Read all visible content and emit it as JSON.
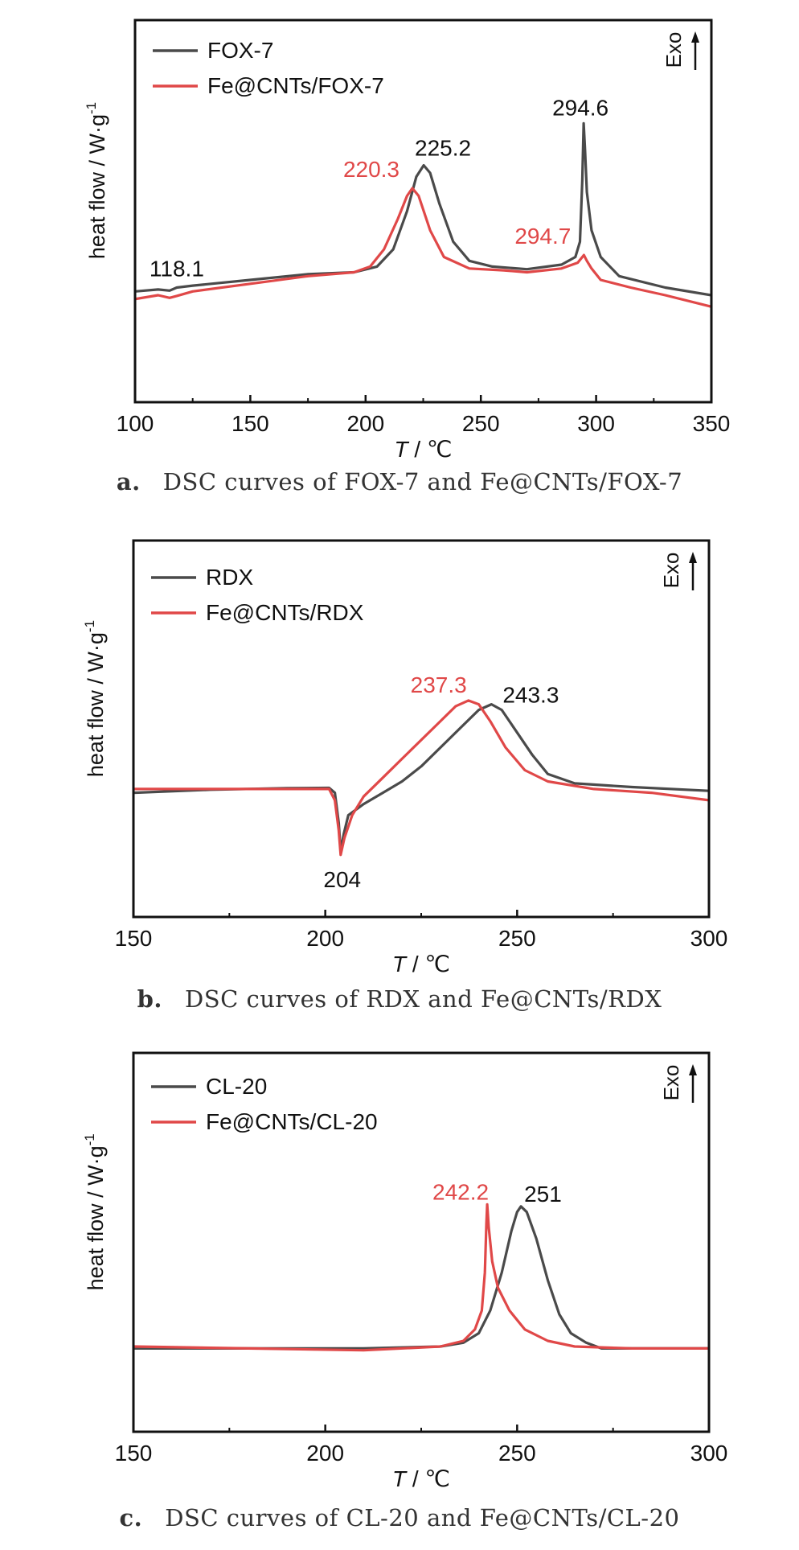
{
  "chart_data": [
    {
      "type": "line",
      "panel_letter": "a.",
      "caption": "DSC curves of FOX-7 and Fe@CNTs/FOX-7",
      "xlabel_italic": "T",
      "xlabel_rest": " / ℃",
      "ylabel": "heat flow / W·g",
      "ylabel_sup": "-1",
      "exo_label": "Exo",
      "xlim": [
        100,
        350
      ],
      "ylim": [
        0,
        100
      ],
      "xticks": [
        100,
        150,
        200,
        250,
        300,
        350
      ],
      "grid": false,
      "legend_position": "top-left",
      "series": [
        {
          "name": "FOX-7",
          "color": "#4a4a4a",
          "points": [
            [
              100,
              29
            ],
            [
              110,
              29.5
            ],
            [
              115,
              29.2
            ],
            [
              118.1,
              30
            ],
            [
              125,
              30.5
            ],
            [
              150,
              32
            ],
            [
              175,
              33.5
            ],
            [
              195,
              34
            ],
            [
              205,
              35.5
            ],
            [
              212,
              40
            ],
            [
              218,
              50
            ],
            [
              222,
              59
            ],
            [
              225.2,
              62
            ],
            [
              228,
              60
            ],
            [
              232,
              52
            ],
            [
              238,
              42
            ],
            [
              245,
              37
            ],
            [
              255,
              35.5
            ],
            [
              270,
              34.8
            ],
            [
              285,
              36
            ],
            [
              291,
              38
            ],
            [
              293,
              42
            ],
            [
              294,
              58
            ],
            [
              294.6,
              73
            ],
            [
              295.2,
              66
            ],
            [
              296,
              55
            ],
            [
              298,
              45
            ],
            [
              302,
              38
            ],
            [
              310,
              33
            ],
            [
              330,
              30
            ],
            [
              350,
              28
            ]
          ]
        },
        {
          "name": "Fe@CNTs/FOX-7",
          "color": "#e04848",
          "points": [
            [
              100,
              27
            ],
            [
              110,
              28
            ],
            [
              115,
              27.3
            ],
            [
              118.1,
              27.8
            ],
            [
              125,
              29
            ],
            [
              150,
              31
            ],
            [
              175,
              33
            ],
            [
              195,
              34
            ],
            [
              202,
              35.5
            ],
            [
              208,
              40
            ],
            [
              214,
              48
            ],
            [
              218,
              54
            ],
            [
              220.3,
              56
            ],
            [
              223,
              54
            ],
            [
              228,
              45
            ],
            [
              234,
              38
            ],
            [
              245,
              35
            ],
            [
              260,
              34.5
            ],
            [
              270,
              34
            ],
            [
              285,
              35
            ],
            [
              292,
              36.5
            ],
            [
              294.7,
              38.5
            ],
            [
              296,
              37
            ],
            [
              298,
              35
            ],
            [
              302,
              32
            ],
            [
              315,
              30
            ],
            [
              330,
              28
            ],
            [
              350,
              25
            ]
          ]
        }
      ],
      "annotations": [
        {
          "text": "118.1",
          "x": 118.1,
          "y": 30,
          "color": "#111111"
        },
        {
          "text": "220.3",
          "x": 220.3,
          "y": 56,
          "color": "#e04848"
        },
        {
          "text": "225.2",
          "x": 225.2,
          "y": 62,
          "color": "#111111"
        },
        {
          "text": "294.7",
          "x": 294.7,
          "y": 38.5,
          "color": "#e04848"
        },
        {
          "text": "294.6",
          "x": 294.6,
          "y": 73,
          "color": "#111111"
        }
      ]
    },
    {
      "type": "line",
      "panel_letter": "b.",
      "caption": "DSC curves of RDX and Fe@CNTs/RDX",
      "xlabel_italic": "T",
      "xlabel_rest": " / ℃",
      "ylabel": "heat flow / W·g",
      "ylabel_sup": "-1",
      "exo_label": "Exo",
      "xlim": [
        150,
        300
      ],
      "ylim": [
        0,
        100
      ],
      "xticks": [
        150,
        200,
        250,
        300
      ],
      "grid": false,
      "legend_position": "top-left",
      "series": [
        {
          "name": "RDX",
          "color": "#4a4a4a",
          "points": [
            [
              150,
              33
            ],
            [
              170,
              33.8
            ],
            [
              190,
              34.2
            ],
            [
              201,
              34.3
            ],
            [
              202.5,
              33
            ],
            [
              203.5,
              25
            ],
            [
              204,
              17.5
            ],
            [
              204.8,
              22
            ],
            [
              206,
              27
            ],
            [
              210,
              30
            ],
            [
              215,
              33
            ],
            [
              220,
              36
            ],
            [
              225,
              40
            ],
            [
              230,
              45
            ],
            [
              235,
              50
            ],
            [
              240,
              55
            ],
            [
              243.3,
              56.5
            ],
            [
              246,
              55
            ],
            [
              250,
              49
            ],
            [
              254,
              43
            ],
            [
              258,
              38
            ],
            [
              265,
              35.5
            ],
            [
              280,
              34.5
            ],
            [
              300,
              33.5
            ]
          ]
        },
        {
          "name": "Fe@CNTs/RDX",
          "color": "#e04848",
          "points": [
            [
              150,
              34
            ],
            [
              170,
              34
            ],
            [
              190,
              34
            ],
            [
              201,
              34
            ],
            [
              202.5,
              31
            ],
            [
              203.5,
              23
            ],
            [
              204,
              16.5
            ],
            [
              205,
              21
            ],
            [
              207,
              27
            ],
            [
              210,
              32
            ],
            [
              215,
              37
            ],
            [
              220,
              42
            ],
            [
              225,
              47
            ],
            [
              230,
              52
            ],
            [
              234,
              56
            ],
            [
              237.3,
              57.5
            ],
            [
              240,
              56.5
            ],
            [
              243,
              52
            ],
            [
              247,
              45
            ],
            [
              252,
              39
            ],
            [
              258,
              36
            ],
            [
              270,
              34
            ],
            [
              285,
              33
            ],
            [
              300,
              31
            ]
          ]
        }
      ],
      "annotations": [
        {
          "text": "237.3",
          "x": 237.3,
          "y": 57.5,
          "color": "#e04848"
        },
        {
          "text": "243.3",
          "x": 243.3,
          "y": 56.5,
          "color": "#111111"
        },
        {
          "text": "204",
          "x": 204,
          "y": 16.5,
          "color": "#111111"
        }
      ]
    },
    {
      "type": "line",
      "panel_letter": "c.",
      "caption": "DSC curves of CL-20 and Fe@CNTs/CL-20",
      "xlabel_italic": "T",
      "xlabel_rest": " / ℃",
      "ylabel": "heat flow / W·g",
      "ylabel_sup": "-1",
      "exo_label": "Exo",
      "xlim": [
        150,
        300
      ],
      "ylim": [
        0,
        100
      ],
      "xticks": [
        150,
        200,
        250,
        300
      ],
      "grid": false,
      "legend_position": "top-left",
      "series": [
        {
          "name": "CL-20",
          "color": "#4a4a4a",
          "points": [
            [
              150,
              22
            ],
            [
              180,
              22
            ],
            [
              210,
              22
            ],
            [
              230,
              22.5
            ],
            [
              236,
              23.5
            ],
            [
              240,
              26
            ],
            [
              243,
              32
            ],
            [
              246,
              42
            ],
            [
              248.5,
              53
            ],
            [
              250,
              58
            ],
            [
              251,
              59.5
            ],
            [
              252.5,
              58
            ],
            [
              255,
              51
            ],
            [
              258,
              40
            ],
            [
              261,
              31
            ],
            [
              264,
              26
            ],
            [
              268,
              23.5
            ],
            [
              272,
              22
            ],
            [
              280,
              22
            ],
            [
              300,
              22
            ]
          ]
        },
        {
          "name": "Fe@CNTs/CL-20",
          "color": "#e04848",
          "points": [
            [
              150,
              22.5
            ],
            [
              180,
              22
            ],
            [
              210,
              21.5
            ],
            [
              230,
              22.5
            ],
            [
              236,
              24
            ],
            [
              239,
              27
            ],
            [
              240.8,
              32
            ],
            [
              241.6,
              42
            ],
            [
              242,
              55
            ],
            [
              242.2,
              60
            ],
            [
              242.6,
              54
            ],
            [
              243.5,
              45
            ],
            [
              245,
              38
            ],
            [
              248,
              32
            ],
            [
              252,
              27
            ],
            [
              258,
              24
            ],
            [
              265,
              22.5
            ],
            [
              280,
              22
            ],
            [
              300,
              22
            ]
          ]
        }
      ],
      "annotations": [
        {
          "text": "242.2",
          "x": 242.2,
          "y": 60,
          "color": "#e04848"
        },
        {
          "text": "251",
          "x": 251,
          "y": 59.5,
          "color": "#111111"
        }
      ]
    }
  ]
}
